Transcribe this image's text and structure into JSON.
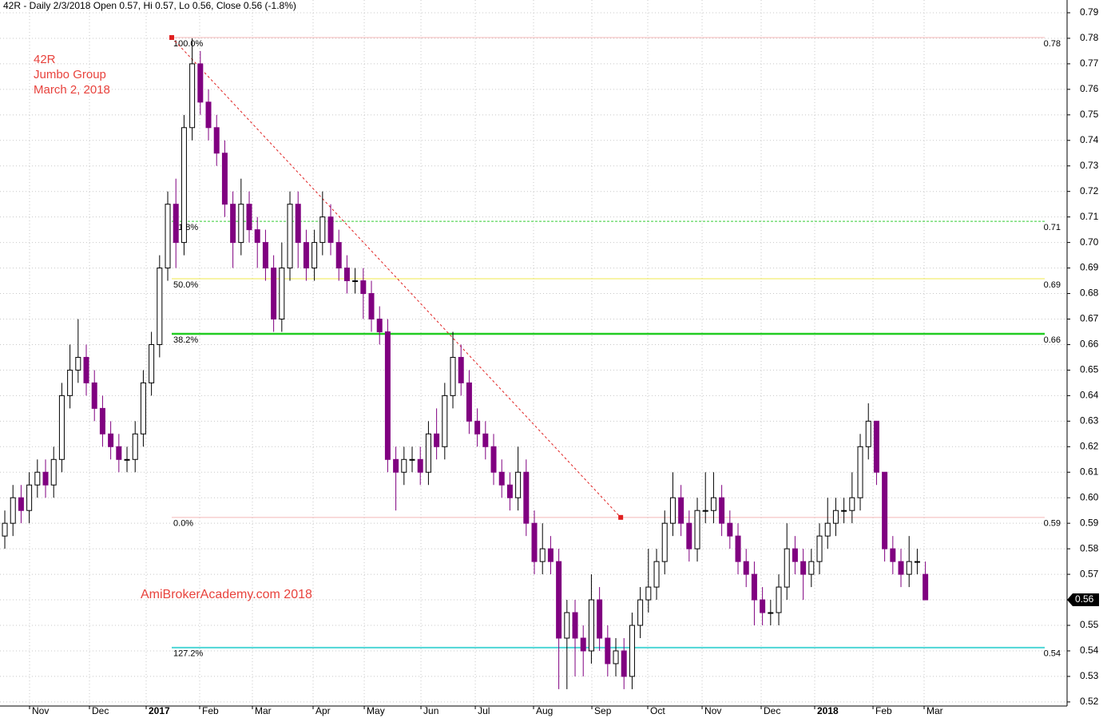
{
  "chart_data": {
    "type": "candlestick",
    "header": "42R - Daily 2/3/2018 Open 0.57, Hi 0.57, Lo 0.56, Close 0.56 (-1.8%)",
    "annotations": [
      "42R",
      "Jumbo Group",
      "March 2, 2018"
    ],
    "watermark": "AmiBrokerAcademy.com  2018",
    "up_color": "#000000",
    "down_color": "#800080",
    "open": [
      0.585,
      0.59,
      0.6,
      0.595,
      0.605,
      0.61,
      0.605,
      0.615,
      0.64,
      0.65,
      0.655,
      0.645,
      0.635,
      0.625,
      0.62,
      0.615,
      0.615,
      0.625,
      0.645,
      0.66,
      0.69,
      0.715,
      0.7,
      0.745,
      0.77,
      0.755,
      0.745,
      0.735,
      0.715,
      0.7,
      0.715,
      0.705,
      0.7,
      0.69,
      0.67,
      0.69,
      0.715,
      0.7,
      0.69,
      0.7,
      0.71,
      0.7,
      0.69,
      0.685,
      0.685,
      0.68,
      0.67,
      0.665,
      0.615,
      0.61,
      0.615,
      0.615,
      0.61,
      0.625,
      0.62,
      0.64,
      0.655,
      0.645,
      0.63,
      0.625,
      0.62,
      0.61,
      0.605,
      0.6,
      0.61,
      0.59,
      0.575,
      0.58,
      0.575,
      0.545,
      0.555,
      0.545,
      0.54,
      0.56,
      0.545,
      0.535,
      0.54,
      0.53,
      0.55,
      0.56,
      0.565,
      0.575,
      0.59,
      0.6,
      0.59,
      0.58,
      0.595,
      0.595,
      0.6,
      0.59,
      0.585,
      0.575,
      0.57,
      0.56,
      0.555,
      0.555,
      0.565,
      0.58,
      0.575,
      0.57,
      0.575,
      0.585,
      0.59,
      0.595,
      0.595,
      0.6,
      0.62,
      0.63,
      0.61,
      0.58,
      0.575,
      0.57,
      0.575,
      0.57
    ],
    "high": [
      0.595,
      0.605,
      0.605,
      0.61,
      0.615,
      0.615,
      0.62,
      0.645,
      0.66,
      0.67,
      0.66,
      0.65,
      0.64,
      0.63,
      0.625,
      0.62,
      0.63,
      0.65,
      0.665,
      0.695,
      0.72,
      0.725,
      0.75,
      0.78,
      0.775,
      0.76,
      0.75,
      0.74,
      0.72,
      0.725,
      0.72,
      0.71,
      0.705,
      0.695,
      0.7,
      0.72,
      0.72,
      0.705,
      0.705,
      0.72,
      0.715,
      0.705,
      0.695,
      0.69,
      0.69,
      0.685,
      0.675,
      0.67,
      0.62,
      0.62,
      0.62,
      0.62,
      0.63,
      0.635,
      0.645,
      0.665,
      0.66,
      0.65,
      0.635,
      0.63,
      0.625,
      0.615,
      0.61,
      0.62,
      0.615,
      0.595,
      0.59,
      0.585,
      0.58,
      0.56,
      0.56,
      0.55,
      0.57,
      0.565,
      0.55,
      0.545,
      0.545,
      0.555,
      0.565,
      0.58,
      0.58,
      0.595,
      0.61,
      0.605,
      0.595,
      0.6,
      0.61,
      0.61,
      0.605,
      0.595,
      0.59,
      0.58,
      0.575,
      0.565,
      0.56,
      0.57,
      0.59,
      0.585,
      0.58,
      0.58,
      0.59,
      0.6,
      0.6,
      0.6,
      0.61,
      0.625,
      0.637,
      0.63,
      0.61,
      0.585,
      0.58,
      0.585,
      0.58,
      0.575
    ],
    "low": [
      0.58,
      0.585,
      0.59,
      0.59,
      0.6,
      0.6,
      0.6,
      0.61,
      0.635,
      0.645,
      0.64,
      0.63,
      0.62,
      0.615,
      0.61,
      0.61,
      0.61,
      0.62,
      0.64,
      0.655,
      0.685,
      0.69,
      0.695,
      0.74,
      0.75,
      0.74,
      0.73,
      0.71,
      0.69,
      0.695,
      0.7,
      0.69,
      0.685,
      0.665,
      0.665,
      0.685,
      0.69,
      0.685,
      0.685,
      0.695,
      0.695,
      0.685,
      0.68,
      0.68,
      0.67,
      0.665,
      0.66,
      0.61,
      0.595,
      0.605,
      0.61,
      0.605,
      0.605,
      0.615,
      0.615,
      0.635,
      0.64,
      0.625,
      0.62,
      0.615,
      0.605,
      0.6,
      0.595,
      0.595,
      0.585,
      0.57,
      0.57,
      0.57,
      0.525,
      0.525,
      0.53,
      0.53,
      0.535,
      0.54,
      0.53,
      0.53,
      0.525,
      0.525,
      0.545,
      0.555,
      0.56,
      0.57,
      0.585,
      0.585,
      0.575,
      0.575,
      0.59,
      0.59,
      0.585,
      0.58,
      0.57,
      0.565,
      0.55,
      0.55,
      0.55,
      0.55,
      0.56,
      0.57,
      0.56,
      0.565,
      0.57,
      0.58,
      0.585,
      0.59,
      0.59,
      0.595,
      0.615,
      0.605,
      0.575,
      0.57,
      0.565,
      0.565,
      0.57,
      0.56
    ],
    "close": [
      0.59,
      0.6,
      0.595,
      0.605,
      0.61,
      0.605,
      0.615,
      0.64,
      0.65,
      0.655,
      0.645,
      0.635,
      0.625,
      0.62,
      0.615,
      0.615,
      0.625,
      0.645,
      0.66,
      0.69,
      0.715,
      0.7,
      0.745,
      0.77,
      0.755,
      0.745,
      0.735,
      0.715,
      0.7,
      0.715,
      0.705,
      0.7,
      0.69,
      0.67,
      0.69,
      0.715,
      0.7,
      0.69,
      0.7,
      0.71,
      0.7,
      0.69,
      0.685,
      0.685,
      0.68,
      0.67,
      0.665,
      0.615,
      0.61,
      0.615,
      0.615,
      0.61,
      0.625,
      0.62,
      0.64,
      0.655,
      0.645,
      0.63,
      0.625,
      0.62,
      0.61,
      0.605,
      0.6,
      0.61,
      0.59,
      0.575,
      0.58,
      0.575,
      0.545,
      0.555,
      0.545,
      0.54,
      0.56,
      0.545,
      0.535,
      0.54,
      0.53,
      0.55,
      0.56,
      0.565,
      0.575,
      0.59,
      0.6,
      0.59,
      0.58,
      0.595,
      0.595,
      0.6,
      0.59,
      0.585,
      0.575,
      0.57,
      0.56,
      0.555,
      0.555,
      0.565,
      0.58,
      0.575,
      0.57,
      0.575,
      0.585,
      0.59,
      0.595,
      0.595,
      0.6,
      0.62,
      0.63,
      0.61,
      0.58,
      0.575,
      0.57,
      0.575,
      0.575,
      0.56
    ],
    "last_price": 0.56,
    "levels": [
      {
        "label": "100.0%",
        "value": 0.7803,
        "value_label": "0.78",
        "color": "#f4b8b8",
        "width": 1,
        "dash": false
      },
      {
        "label": "61.8%",
        "value": 0.7083,
        "value_label": "0.71",
        "color": "#33cc33",
        "width": 1,
        "dash": true
      },
      {
        "label": "50.0%",
        "value": 0.6858,
        "value_label": "0.69",
        "color": "#f2e94e",
        "width": 1,
        "dash": false
      },
      {
        "label": "38.2%",
        "value": 0.6642,
        "value_label": "0.66",
        "color": "#22cc22",
        "width": 2.5,
        "dash": false
      },
      {
        "label": "0.0%",
        "value": 0.5923,
        "value_label": "0.59",
        "color": "#f4b8b8",
        "width": 1,
        "dash": false
      },
      {
        "label": "127.2%",
        "value": 0.5413,
        "value_label": "0.54",
        "color": "#4dd6d6",
        "width": 2,
        "dash": false
      }
    ],
    "levels_start": 20.49,
    "trend_line": {
      "x": [
        20.49,
        75.6
      ],
      "y": [
        0.7803,
        0.5923
      ],
      "color": "#e02020"
    },
    "xlim": [
      -0.59,
      130.39
    ],
    "ylim": [
      0.5184,
      0.795
    ],
    "xticks": [
      {
        "value": 3.04,
        "label": "Nov"
      },
      {
        "value": 10.39,
        "label": "Dec"
      },
      {
        "value": 17.35,
        "label": "2017"
      },
      {
        "value": 23.92,
        "label": "Feb"
      },
      {
        "value": 30.39,
        "label": "Mar"
      },
      {
        "value": 37.84,
        "label": "Apr"
      },
      {
        "value": 44.12,
        "label": "May"
      },
      {
        "value": 51.08,
        "label": "Jun"
      },
      {
        "value": 57.75,
        "label": "Jul"
      },
      {
        "value": 64.9,
        "label": "Aug"
      },
      {
        "value": 72.06,
        "label": "Sep"
      },
      {
        "value": 78.92,
        "label": "Oct"
      },
      {
        "value": 85.59,
        "label": "Nov"
      },
      {
        "value": 92.84,
        "label": "Dec"
      },
      {
        "value": 99.41,
        "label": "2018"
      },
      {
        "value": 106.57,
        "label": "Feb"
      },
      {
        "value": 112.84,
        "label": "Mar"
      }
    ],
    "yticks": [
      0.52,
      0.53,
      0.54,
      0.55,
      0.56,
      0.57,
      0.58,
      0.59,
      {
        "value": 0.6,
        "label": "0.60"
      },
      0.61,
      0.62,
      0.63,
      0.64,
      0.65,
      0.66,
      0.67,
      0.68,
      0.69,
      {
        "value": 0.7,
        "label": "0.70"
      },
      0.71,
      0.72,
      0.73,
      0.74,
      0.75,
      0.76,
      0.77,
      0.78,
      0.79
    ],
    "grid": true
  }
}
